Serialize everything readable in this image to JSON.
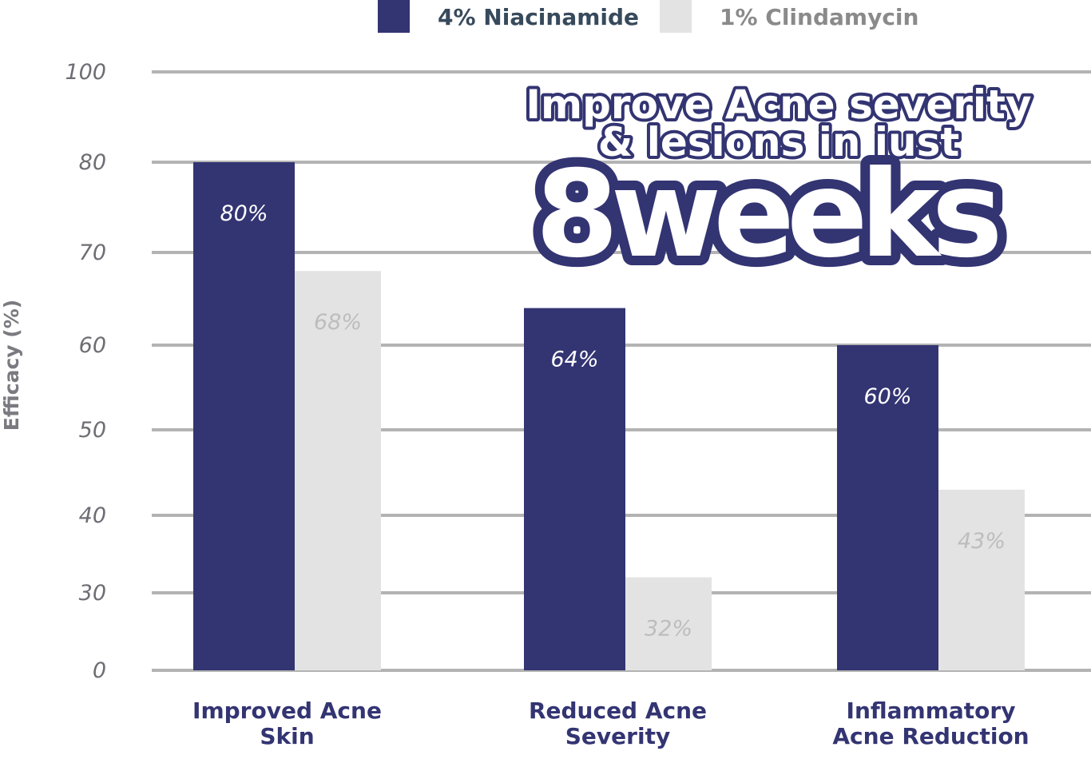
{
  "chart_data": {
    "type": "bar",
    "categories": [
      [
        "Improved Acne",
        "Skin"
      ],
      [
        "Reduced Acne",
        "Severity"
      ],
      [
        "Inflammatory",
        "Acne Reduction"
      ]
    ],
    "series": [
      {
        "name": "4% Niacinamide",
        "color": "#333472",
        "label_color": "#ffffff",
        "values": [
          80,
          64,
          60
        ],
        "labels": [
          "80%",
          "64%",
          "60%"
        ]
      },
      {
        "name": "1% Clindamycin",
        "color": "#e3e3e3",
        "label_color": "#bdbdbd",
        "values": [
          68,
          32,
          43
        ],
        "labels": [
          "68%",
          "32%",
          "43%"
        ]
      }
    ],
    "ylabel": "Efficacy (%)",
    "yticks": [
      "0",
      "30",
      "40",
      "50",
      "60",
      "70",
      "80",
      "100"
    ],
    "grid": true,
    "legend_position": "top",
    "legend_text_colors": [
      "#374a5c",
      "#8a8a8a"
    ],
    "headline": {
      "line1": "Improve Acne severity",
      "line2": "& lesions in just",
      "big": "8weeks"
    }
  }
}
